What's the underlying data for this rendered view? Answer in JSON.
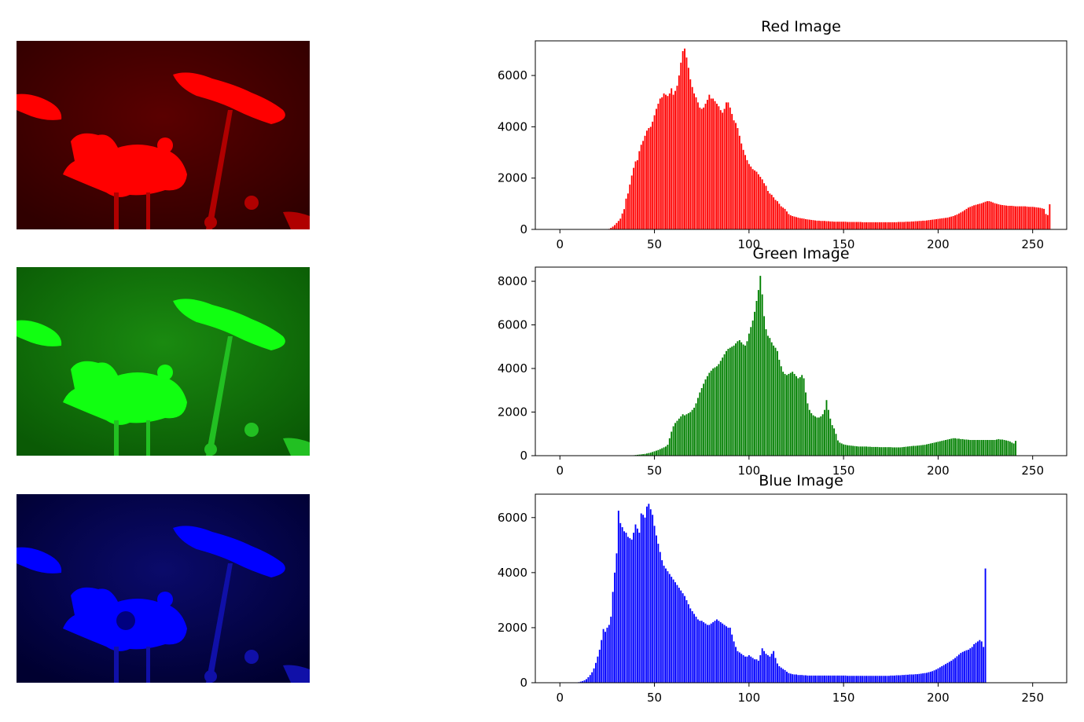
{
  "chart_data": [
    {
      "type": "bar",
      "title": "Red Image",
      "color": "#ff0000",
      "panel_image": "red-channel-flower-photo",
      "xticks": [
        0,
        50,
        100,
        150,
        200,
        250
      ],
      "yticks": [
        0,
        2000,
        4000,
        6000
      ],
      "xlim": [
        -13,
        268
      ],
      "ylim": [
        0,
        7350
      ],
      "x_start": 0,
      "values": [
        0,
        0,
        0,
        0,
        0,
        0,
        0,
        0,
        0,
        0,
        0,
        0,
        0,
        0,
        0,
        0,
        0,
        0,
        0,
        0,
        0,
        0,
        0,
        0,
        0,
        0,
        20,
        60,
        110,
        170,
        250,
        330,
        420,
        620,
        790,
        1200,
        1400,
        1750,
        2100,
        2400,
        2650,
        2700,
        3050,
        3300,
        3450,
        3650,
        3850,
        3950,
        4000,
        4200,
        4450,
        4700,
        4900,
        5100,
        5150,
        5300,
        5250,
        5200,
        5300,
        5500,
        5250,
        5400,
        5600,
        6000,
        6500,
        6950,
        7050,
        6700,
        6300,
        5850,
        5550,
        5300,
        5150,
        4950,
        4750,
        4700,
        4750,
        4900,
        5050,
        5250,
        5100,
        5100,
        5000,
        4900,
        4800,
        4650,
        4550,
        4700,
        4950,
        4950,
        4750,
        4500,
        4250,
        4150,
        3950,
        3650,
        3350,
        3100,
        2900,
        2700,
        2550,
        2450,
        2350,
        2300,
        2250,
        2150,
        2050,
        1950,
        1800,
        1700,
        1500,
        1400,
        1350,
        1250,
        1150,
        1100,
        1000,
        900,
        850,
        800,
        700,
        600,
        550,
        520,
        500,
        480,
        460,
        440,
        430,
        420,
        400,
        390,
        380,
        370,
        360,
        350,
        340,
        340,
        330,
        330,
        330,
        320,
        320,
        310,
        310,
        300,
        300,
        300,
        300,
        300,
        300,
        300,
        290,
        290,
        290,
        290,
        290,
        290,
        290,
        290,
        280,
        280,
        280,
        280,
        280,
        280,
        280,
        280,
        280,
        280,
        280,
        280,
        280,
        280,
        280,
        280,
        280,
        280,
        280,
        290,
        290,
        290,
        290,
        300,
        300,
        300,
        310,
        310,
        320,
        320,
        330,
        330,
        340,
        340,
        350,
        360,
        370,
        380,
        390,
        400,
        410,
        420,
        430,
        440,
        450,
        460,
        480,
        500,
        520,
        550,
        580,
        620,
        660,
        700,
        750,
        800,
        850,
        880,
        910,
        940,
        960,
        980,
        1000,
        1020,
        1050,
        1080,
        1100,
        1100,
        1080,
        1050,
        1020,
        1000,
        980,
        960,
        950,
        940,
        930,
        920,
        920,
        920,
        910,
        900,
        900,
        900,
        900,
        900,
        900,
        890,
        880,
        880,
        880,
        870,
        860,
        850,
        840,
        820,
        800,
        600,
        560,
        980
      ]
    },
    {
      "type": "bar",
      "title": "Green Image",
      "color": "#008000",
      "panel_image": "green-channel-flower-photo",
      "xticks": [
        0,
        50,
        100,
        150,
        200,
        250
      ],
      "yticks": [
        0,
        2000,
        4000,
        6000,
        8000
      ],
      "xlim": [
        -13,
        268
      ],
      "ylim": [
        0,
        8650
      ],
      "x_start": 0,
      "values": [
        0,
        0,
        0,
        0,
        0,
        0,
        0,
        0,
        0,
        0,
        0,
        0,
        0,
        0,
        0,
        0,
        0,
        0,
        0,
        0,
        0,
        0,
        0,
        0,
        0,
        0,
        0,
        0,
        0,
        0,
        0,
        0,
        0,
        0,
        0,
        0,
        0,
        0,
        10,
        20,
        30,
        40,
        50,
        60,
        70,
        80,
        100,
        120,
        140,
        170,
        200,
        230,
        260,
        300,
        340,
        380,
        420,
        500,
        800,
        1100,
        1350,
        1500,
        1600,
        1700,
        1800,
        1900,
        1850,
        1900,
        1950,
        2000,
        2100,
        2200,
        2400,
        2650,
        2900,
        3100,
        3300,
        3500,
        3650,
        3800,
        3900,
        4000,
        4050,
        4100,
        4200,
        4350,
        4500,
        4650,
        4800,
        4900,
        4950,
        5000,
        5050,
        5150,
        5250,
        5300,
        5200,
        5100,
        5050,
        5250,
        5600,
        5900,
        6200,
        6600,
        7100,
        7600,
        8250,
        7400,
        6400,
        5800,
        5500,
        5400,
        5200,
        5050,
        4950,
        4800,
        4400,
        4100,
        3850,
        3750,
        3700,
        3750,
        3800,
        3850,
        3750,
        3650,
        3550,
        3600,
        3700,
        3550,
        2900,
        2400,
        2100,
        1950,
        1850,
        1800,
        1750,
        1750,
        1800,
        1900,
        2100,
        2550,
        2100,
        1700,
        1400,
        1250,
        1000,
        700,
        600,
        560,
        520,
        500,
        480,
        470,
        460,
        450,
        440,
        430,
        420,
        420,
        420,
        420,
        420,
        410,
        410,
        400,
        400,
        400,
        400,
        390,
        390,
        390,
        390,
        390,
        390,
        390,
        380,
        380,
        380,
        380,
        380,
        390,
        400,
        410,
        420,
        430,
        440,
        450,
        450,
        460,
        470,
        480,
        490,
        500,
        520,
        540,
        560,
        580,
        600,
        620,
        640,
        660,
        680,
        700,
        720,
        740,
        760,
        780,
        800,
        800,
        780,
        780,
        760,
        760,
        740,
        740,
        730,
        720,
        720,
        720,
        720,
        720,
        720,
        720,
        720,
        720,
        720,
        720,
        720,
        720,
        720,
        740,
        760,
        740,
        740,
        720,
        700,
        680,
        650,
        600,
        560,
        680
      ]
    },
    {
      "type": "bar",
      "title": "Blue Image",
      "color": "#0000ff",
      "panel_image": "blue-channel-flower-photo",
      "xticks": [
        0,
        50,
        100,
        150,
        200,
        250
      ],
      "yticks": [
        0,
        2000,
        4000,
        6000
      ],
      "xlim": [
        -13,
        268
      ],
      "ylim": [
        0,
        6850
      ],
      "x_start": 0,
      "values": [
        0,
        0,
        0,
        0,
        0,
        0,
        0,
        0,
        0,
        0,
        20,
        40,
        60,
        90,
        130,
        200,
        280,
        380,
        520,
        720,
        950,
        1200,
        1550,
        1950,
        1850,
        2000,
        2100,
        2400,
        3300,
        4000,
        4700,
        6250,
        5800,
        5650,
        5500,
        5450,
        5300,
        5250,
        5200,
        5450,
        5750,
        5600,
        5450,
        6150,
        6100,
        6000,
        6400,
        6500,
        6300,
        6100,
        5700,
        5350,
        5050,
        4750,
        4450,
        4250,
        4150,
        4050,
        3950,
        3850,
        3750,
        3650,
        3550,
        3450,
        3350,
        3250,
        3150,
        3000,
        2850,
        2700,
        2600,
        2500,
        2400,
        2300,
        2250,
        2250,
        2200,
        2150,
        2100,
        2100,
        2150,
        2200,
        2250,
        2300,
        2250,
        2200,
        2150,
        2100,
        2050,
        2000,
        2000,
        1750,
        1500,
        1300,
        1150,
        1100,
        1050,
        1000,
        950,
        950,
        1000,
        950,
        900,
        850,
        850,
        800,
        1000,
        1250,
        1150,
        1050,
        1000,
        950,
        1050,
        1150,
        900,
        700,
        600,
        550,
        500,
        460,
        400,
        350,
        330,
        310,
        300,
        300,
        280,
        280,
        280,
        270,
        270,
        260,
        260,
        260,
        260,
        260,
        260,
        260,
        260,
        260,
        260,
        260,
        260,
        260,
        260,
        260,
        260,
        260,
        260,
        260,
        260,
        260,
        250,
        250,
        250,
        250,
        250,
        250,
        250,
        250,
        250,
        250,
        250,
        250,
        250,
        250,
        250,
        250,
        250,
        250,
        250,
        250,
        250,
        250,
        250,
        260,
        260,
        260,
        270,
        270,
        270,
        280,
        280,
        290,
        290,
        300,
        300,
        300,
        310,
        310,
        320,
        330,
        340,
        350,
        360,
        380,
        400,
        420,
        450,
        480,
        520,
        560,
        600,
        640,
        680,
        720,
        760,
        800,
        850,
        900,
        960,
        1020,
        1080,
        1120,
        1150,
        1180,
        1200,
        1250,
        1300,
        1400,
        1450,
        1500,
        1550,
        1500,
        1300,
        4150
      ]
    }
  ]
}
